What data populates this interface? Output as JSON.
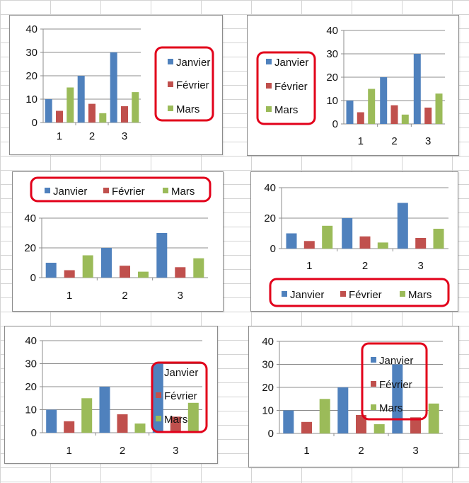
{
  "chart_data": [
    {
      "type": "bar",
      "legend_position": "right",
      "categories": [
        "1",
        "2",
        "3"
      ],
      "ylim": [
        0,
        40
      ],
      "yticks": [
        "0",
        "10",
        "20",
        "30",
        "40"
      ],
      "series": [
        {
          "name": "Janvier",
          "values": [
            10,
            20,
            30
          ],
          "color": "#4F81BD"
        },
        {
          "name": "Février",
          "values": [
            5,
            8,
            7
          ],
          "color": "#C0504D"
        },
        {
          "name": "Mars",
          "values": [
            15,
            4,
            13
          ],
          "color": "#9BBB59"
        }
      ],
      "legend_highlight_color": "#E2001A"
    },
    {
      "type": "bar",
      "legend_position": "left",
      "categories": [
        "1",
        "2",
        "3"
      ],
      "ylim": [
        0,
        40
      ],
      "yticks": [
        "0",
        "10",
        "20",
        "30",
        "40"
      ],
      "series": [
        {
          "name": "Janvier",
          "values": [
            10,
            20,
            30
          ],
          "color": "#4F81BD"
        },
        {
          "name": "Février",
          "values": [
            5,
            8,
            7
          ],
          "color": "#C0504D"
        },
        {
          "name": "Mars",
          "values": [
            15,
            4,
            13
          ],
          "color": "#9BBB59"
        }
      ],
      "legend_highlight_color": "#E2001A"
    },
    {
      "type": "bar",
      "legend_position": "top",
      "categories": [
        "1",
        "2",
        "3"
      ],
      "ylim": [
        0,
        40
      ],
      "yticks": [
        "0",
        "20",
        "40"
      ],
      "series": [
        {
          "name": "Janvier",
          "values": [
            10,
            20,
            30
          ],
          "color": "#4F81BD"
        },
        {
          "name": "Février",
          "values": [
            5,
            8,
            7
          ],
          "color": "#C0504D"
        },
        {
          "name": "Mars",
          "values": [
            15,
            4,
            13
          ],
          "color": "#9BBB59"
        }
      ],
      "legend_highlight_color": "#E2001A"
    },
    {
      "type": "bar",
      "legend_position": "bottom",
      "categories": [
        "1",
        "2",
        "3"
      ],
      "ylim": [
        0,
        40
      ],
      "yticks": [
        "0",
        "20",
        "40"
      ],
      "series": [
        {
          "name": "Janvier",
          "values": [
            10,
            20,
            30
          ],
          "color": "#4F81BD"
        },
        {
          "name": "Février",
          "values": [
            5,
            8,
            7
          ],
          "color": "#C0504D"
        },
        {
          "name": "Mars",
          "values": [
            15,
            4,
            13
          ],
          "color": "#9BBB59"
        }
      ],
      "legend_highlight_color": "#E2001A"
    },
    {
      "type": "bar",
      "legend_position": "overlay-right",
      "categories": [
        "1",
        "2",
        "3"
      ],
      "ylim": [
        0,
        40
      ],
      "yticks": [
        "0",
        "10",
        "20",
        "30",
        "40"
      ],
      "series": [
        {
          "name": "Janvier",
          "values": [
            10,
            20,
            30
          ],
          "color": "#4F81BD"
        },
        {
          "name": "Février",
          "values": [
            5,
            8,
            7
          ],
          "color": "#C0504D"
        },
        {
          "name": "Mars",
          "values": [
            15,
            4,
            13
          ],
          "color": "#9BBB59"
        }
      ],
      "legend_highlight_color": "#E2001A"
    },
    {
      "type": "bar",
      "legend_position": "overlay-top-right",
      "categories": [
        "1",
        "2",
        "3"
      ],
      "ylim": [
        0,
        40
      ],
      "yticks": [
        "0",
        "10",
        "20",
        "30",
        "40"
      ],
      "series": [
        {
          "name": "Janvier",
          "values": [
            10,
            20,
            30
          ],
          "color": "#4F81BD"
        },
        {
          "name": "Février",
          "values": [
            5,
            8,
            7
          ],
          "color": "#C0504D"
        },
        {
          "name": "Mars",
          "values": [
            15,
            4,
            13
          ],
          "color": "#9BBB59"
        }
      ],
      "legend_highlight_color": "#E2001A"
    }
  ]
}
